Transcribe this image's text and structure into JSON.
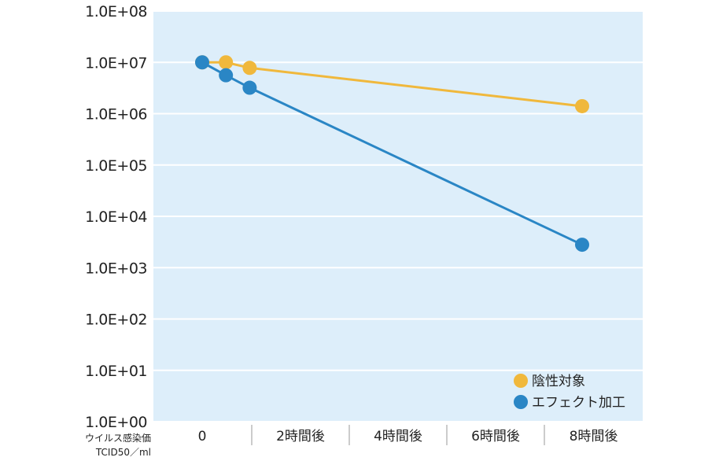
{
  "chart_data": {
    "type": "line",
    "y_scale": "log",
    "ylim": [
      1,
      100000000
    ],
    "y_tick_labels": [
      "1.0E+08",
      "1.0E+07",
      "1.0E+06",
      "1.0E+05",
      "1.0E+04",
      "1.0E+03",
      "1.0E+02",
      "1.0E+01",
      "1.0E+00"
    ],
    "ylabel_line1": "ウイルス感染価",
    "ylabel_line2": "TCID50／ml",
    "categories": [
      "0",
      "2時間後",
      "4時間後",
      "6時間後",
      "8時間後"
    ],
    "grid": true,
    "legend_position": "bottom-right",
    "background_color": "#ddeefa",
    "grid_color": "#ffffff",
    "series": [
      {
        "name": "陰性対象",
        "color": "#f0b83c",
        "points": [
          {
            "x": 0,
            "y": 10000000
          },
          {
            "x": 0.5,
            "y": 10000000
          },
          {
            "x": 1,
            "y": 7800000
          },
          {
            "x": 8,
            "y": 1400000
          }
        ]
      },
      {
        "name": "エフェクト加工",
        "color": "#2a86c5",
        "points": [
          {
            "x": 0,
            "y": 10000000
          },
          {
            "x": 0.5,
            "y": 5600000
          },
          {
            "x": 1,
            "y": 3200000
          },
          {
            "x": 8,
            "y": 2800
          }
        ]
      }
    ]
  }
}
